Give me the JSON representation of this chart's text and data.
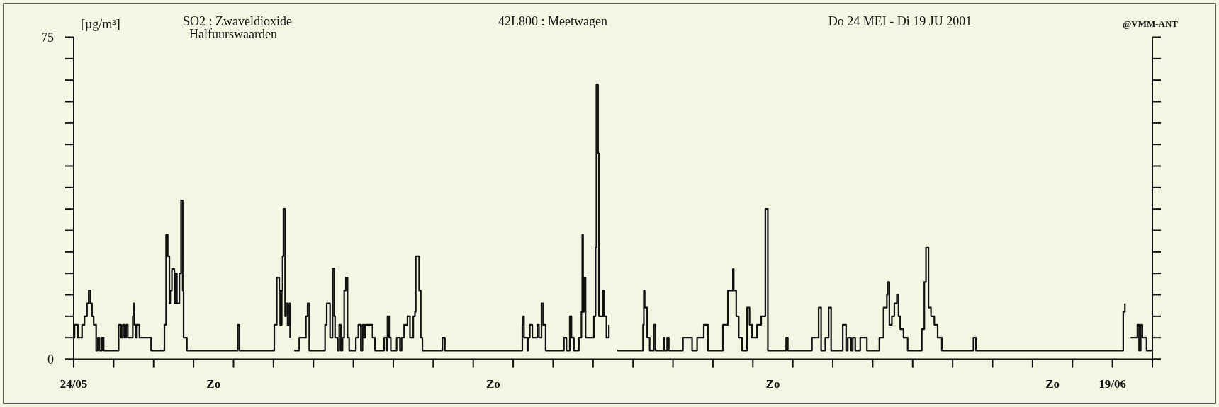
{
  "chart_data": {
    "type": "step",
    "title": "SO2 : Zwaveldioxide",
    "subtitle": "Halfuurswaarden",
    "ylabel": "[µg/m³]",
    "annotations": [
      "42L800 : Meetwagen",
      "Do 24 MEI - Di 19 JU  2001",
      "@VMM-ANT"
    ],
    "xlim": [
      "2001-05-24",
      "2001-06-20"
    ],
    "ylim": [
      0,
      75
    ],
    "xticks": [
      {
        "value": "2001-05-24",
        "label": "24/05"
      },
      {
        "value": "2001-05-25",
        "label": null
      },
      {
        "value": "2001-05-26",
        "label": null
      },
      {
        "value": "2001-05-27",
        "label": null
      },
      {
        "value": "2001-05-27T12:00",
        "label": "Zo"
      },
      {
        "value": "2001-05-28",
        "label": null
      },
      {
        "value": "2001-05-29",
        "label": null
      },
      {
        "value": "2001-05-30",
        "label": null
      },
      {
        "value": "2001-05-31",
        "label": null
      },
      {
        "value": "2001-06-01",
        "label": null
      },
      {
        "value": "2001-06-02",
        "label": null
      },
      {
        "value": "2001-06-03",
        "label": null
      },
      {
        "value": "2001-06-03T12:00",
        "label": "Zo"
      },
      {
        "value": "2001-06-04",
        "label": null
      },
      {
        "value": "2001-06-05",
        "label": null
      },
      {
        "value": "2001-06-06",
        "label": null
      },
      {
        "value": "2001-06-07",
        "label": null
      },
      {
        "value": "2001-06-08",
        "label": null
      },
      {
        "value": "2001-06-09",
        "label": null
      },
      {
        "value": "2001-06-10",
        "label": null
      },
      {
        "value": "2001-06-10T12:00",
        "label": "Zo"
      },
      {
        "value": "2001-06-11",
        "label": null
      },
      {
        "value": "2001-06-12",
        "label": null
      },
      {
        "value": "2001-06-13",
        "label": null
      },
      {
        "value": "2001-06-14",
        "label": null
      },
      {
        "value": "2001-06-15",
        "label": null
      },
      {
        "value": "2001-06-16",
        "label": null
      },
      {
        "value": "2001-06-17",
        "label": null
      },
      {
        "value": "2001-06-17T12:00",
        "label": "Zo"
      },
      {
        "value": "2001-06-18",
        "label": null
      },
      {
        "value": "2001-06-19",
        "label": "19/06"
      },
      {
        "value": "2001-06-20",
        "label": null
      }
    ],
    "yticks": [
      0,
      {
        "value": 5,
        "label": null
      },
      {
        "value": 10,
        "label": null
      },
      {
        "value": 15,
        "label": null
      },
      {
        "value": 20,
        "label": null
      },
      {
        "value": 25,
        "label": null
      },
      {
        "value": 30,
        "label": null
      },
      {
        "value": 35,
        "label": null
      },
      {
        "value": 40,
        "label": null
      },
      {
        "value": 45,
        "label": null
      },
      {
        "value": 50,
        "label": null
      },
      {
        "value": 55,
        "label": null
      },
      {
        "value": 60,
        "label": null
      },
      {
        "value": 65,
        "label": null
      },
      {
        "value": 70,
        "label": null
      },
      75
    ],
    "line_style": "solid",
    "series": [
      {
        "color": "#111111",
        "x": [
          "2001-05-24T00:00",
          "2001-05-24T00:30",
          "2001-05-24T02:30",
          "2001-05-24T05:00",
          "2001-05-24T06:30",
          "2001-05-24T08:00",
          "2001-05-24T09:00",
          "2001-05-24T10:00",
          "2001-05-24T11:00",
          "2001-05-24T12:00",
          "2001-05-24T13:30",
          "2001-05-24T14:30",
          "2001-05-24T15:30",
          "2001-05-24T17:00",
          "2001-05-24T18:00",
          "2001-05-25T03:00",
          "2001-05-25T04:30",
          "2001-05-25T05:30",
          "2001-05-25T06:30",
          "2001-05-25T07:30",
          "2001-05-25T08:30",
          "2001-05-25T11:30",
          "2001-05-25T12:00",
          "2001-05-25T12:30",
          "2001-05-25T13:30",
          "2001-05-25T14:00",
          "2001-05-25T15:30",
          "2001-05-25T22:30",
          "2001-05-26T06:30",
          "2001-05-26T07:30",
          "2001-05-26T08:30",
          "2001-05-26T09:30",
          "2001-05-26T10:00",
          "2001-05-26T11:00",
          "2001-05-26T12:30",
          "2001-05-26T13:00",
          "2001-05-26T14:00",
          "2001-05-26T15:30",
          "2001-05-26T16:30",
          "2001-05-26T17:30",
          "2001-05-26T18:00",
          "2001-05-26T20:00",
          "2001-05-28T02:30",
          "2001-05-28T03:30",
          "2001-05-29T00:30",
          "2001-05-29T02:00",
          "2001-05-29T03:30",
          "2001-05-29T04:00",
          "2001-05-29T05:00",
          "2001-05-29T05:30",
          "2001-05-29T06:00",
          "2001-05-29T07:00",
          "2001-05-29T07:30",
          "2001-05-29T08:30",
          "2001-05-29T09:30",
          "2001-05-29T10:00",
          "2001-05-29T11:00",
          "2001-05-29T12:30",
          "2001-05-29T15:30",
          "2001-05-29T19:30",
          "2001-05-29T20:30",
          "2001-05-29T21:30",
          "2001-05-30T07:00",
          "2001-05-30T08:00",
          "2001-05-30T10:00",
          "2001-05-30T11:30",
          "2001-05-30T12:30",
          "2001-05-30T13:00",
          "2001-05-30T14:30",
          "2001-05-30T15:30",
          "2001-05-30T16:30",
          "2001-05-30T17:30",
          "2001-05-30T18:30",
          "2001-05-30T19:30",
          "2001-05-30T20:30",
          "2001-05-30T21:30",
          "2001-05-31T01:30",
          "2001-05-31T03:00",
          "2001-05-31T04:30",
          "2001-05-31T05:30",
          "2001-05-31T06:00",
          "2001-05-31T07:00",
          "2001-05-31T11:30",
          "2001-05-31T13:00",
          "2001-05-31T18:30",
          "2001-05-31T20:00",
          "2001-05-31T20:30",
          "2001-05-31T21:30",
          "2001-05-31T22:30",
          "2001-06-01T02:00",
          "2001-06-01T04:00",
          "2001-06-01T05:00",
          "2001-06-01T06:30",
          "2001-06-01T08:30",
          "2001-06-01T10:00",
          "2001-06-01T12:00",
          "2001-06-01T13:00",
          "2001-06-01T13:30",
          "2001-06-01T15:30",
          "2001-06-01T16:30",
          "2001-06-01T17:30",
          "2001-06-02T05:30",
          "2001-06-02T07:00",
          "2001-06-04T05:30",
          "2001-06-04T06:00",
          "2001-06-04T06:30",
          "2001-06-04T08:30",
          "2001-06-04T09:00",
          "2001-06-04T10:00",
          "2001-06-04T11:30",
          "2001-06-04T14:30",
          "2001-06-04T15:30",
          "2001-06-04T17:00",
          "2001-06-04T18:00",
          "2001-06-04T19:30",
          "2001-06-05T06:30",
          "2001-06-05T08:00",
          "2001-06-05T10:00",
          "2001-06-05T11:00",
          "2001-06-05T12:30",
          "2001-06-05T15:30",
          "2001-06-05T17:00",
          "2001-06-05T17:30",
          "2001-06-05T18:00",
          "2001-06-05T18:30",
          "2001-06-05T19:30",
          "2001-06-06T00:30",
          "2001-06-06T01:30",
          "2001-06-06T02:00",
          "2001-06-06T03:00",
          "2001-06-06T03:30",
          "2001-06-06T06:00",
          "2001-06-06T06:30",
          "2001-06-06T08:00",
          "2001-06-06T09:30",
          "2001-06-06T11:30",
          "2001-06-06T14:30",
          "2001-06-07T06:00",
          "2001-06-07T06:30",
          "2001-06-07T07:00",
          "2001-06-07T08:30",
          "2001-06-07T10:00",
          "2001-06-07T12:30",
          "2001-06-07T13:30",
          "2001-06-07T18:30",
          "2001-06-07T19:00",
          "2001-06-07T20:30",
          "2001-06-07T21:30",
          "2001-06-08T06:00",
          "2001-06-08T11:30",
          "2001-06-08T14:30",
          "2001-06-08T18:30",
          "2001-06-08T21:00",
          "2001-06-09T06:00",
          "2001-06-09T09:00",
          "2001-06-09T12:00",
          "2001-06-09T12:30",
          "2001-06-09T14:00",
          "2001-06-09T15:30",
          "2001-06-09T17:30",
          "2001-06-09T20:30",
          "2001-06-09T22:00",
          "2001-06-09T23:30",
          "2001-06-10T02:30",
          "2001-06-10T05:00",
          "2001-06-10T07:30",
          "2001-06-10T09:00",
          "2001-06-10T20:00",
          "2001-06-10T21:00",
          "2001-06-11T11:30",
          "2001-06-11T15:30",
          "2001-06-11T17:00",
          "2001-06-11T19:30",
          "2001-06-11T21:30",
          "2001-06-11T23:00",
          "2001-06-12T06:00",
          "2001-06-12T08:00",
          "2001-06-12T09:00",
          "2001-06-12T11:00",
          "2001-06-12T12:00",
          "2001-06-12T13:30",
          "2001-06-12T16:30",
          "2001-06-12T20:30",
          "2001-06-13T04:00",
          "2001-06-13T06:30",
          "2001-06-13T08:30",
          "2001-06-13T09:00",
          "2001-06-13T10:00",
          "2001-06-13T11:30",
          "2001-06-13T13:00",
          "2001-06-13T14:30",
          "2001-06-13T15:30",
          "2001-06-13T16:30",
          "2001-06-13T18:30",
          "2001-06-13T21:00",
          "2001-06-14T05:30",
          "2001-06-14T07:00",
          "2001-06-14T08:00",
          "2001-06-14T09:30",
          "2001-06-14T11:00",
          "2001-06-14T13:00",
          "2001-06-14T15:00",
          "2001-06-14T17:30",
          "2001-06-15T12:30",
          "2001-06-15T14:00",
          "2001-06-19T06:30",
          "2001-06-19T07:30",
          "2001-06-19T09:00",
          "2001-06-19T11:00",
          "2001-06-19T15:00",
          "2001-06-19T16:00",
          "2001-06-19T17:00",
          "2001-06-19T18:00",
          "2001-06-19T20:30",
          "2001-06-20T00:00"
        ],
        "values": [
          5,
          8,
          5,
          8,
          10,
          13,
          16,
          13,
          10,
          8,
          2,
          5,
          2,
          5,
          2,
          8,
          5,
          8,
          5,
          8,
          5,
          10,
          13,
          8,
          5,
          8,
          5,
          2,
          8,
          29,
          24,
          13,
          16,
          21,
          13,
          20,
          13,
          20,
          37,
          16,
          5,
          2,
          8,
          2,
          8,
          19,
          16,
          8,
          16,
          24,
          35,
          10,
          13,
          8,
          13,
          5,
          null,
          2,
          5,
          10,
          13,
          2,
          8,
          13,
          5,
          21,
          10,
          5,
          2,
          8,
          2,
          5,
          16,
          19,
          5,
          2,
          5,
          8,
          2,
          8,
          5,
          8,
          5,
          2,
          5,
          2,
          10,
          5,
          2,
          5,
          2,
          5,
          8,
          10,
          5,
          10,
          11,
          24,
          16,
          5,
          2,
          5,
          2,
          8,
          10,
          5,
          2,
          5,
          8,
          5,
          8,
          5,
          13,
          8,
          2,
          5,
          2,
          10,
          5,
          2,
          5,
          11,
          29,
          11,
          19,
          5,
          10,
          26,
          64,
          48,
          10,
          16,
          10,
          5,
          8,
          null,
          2,
          8,
          16,
          12,
          5,
          2,
          8,
          2,
          5,
          2,
          5,
          2,
          5,
          2,
          5,
          8,
          2,
          8,
          16,
          21,
          16,
          10,
          5,
          2,
          12,
          8,
          5,
          8,
          10,
          35,
          2,
          5,
          2,
          5,
          12,
          2,
          5,
          12,
          2,
          8,
          2,
          5,
          2,
          5,
          2,
          5,
          2,
          5,
          12,
          15,
          18,
          8,
          10,
          13,
          15,
          10,
          7,
          5,
          2,
          7,
          18,
          26,
          12,
          10,
          8,
          5,
          2,
          5,
          2,
          11,
          13,
          null,
          5,
          8,
          2,
          8,
          5,
          2,
          2
        ]
      }
    ]
  }
}
